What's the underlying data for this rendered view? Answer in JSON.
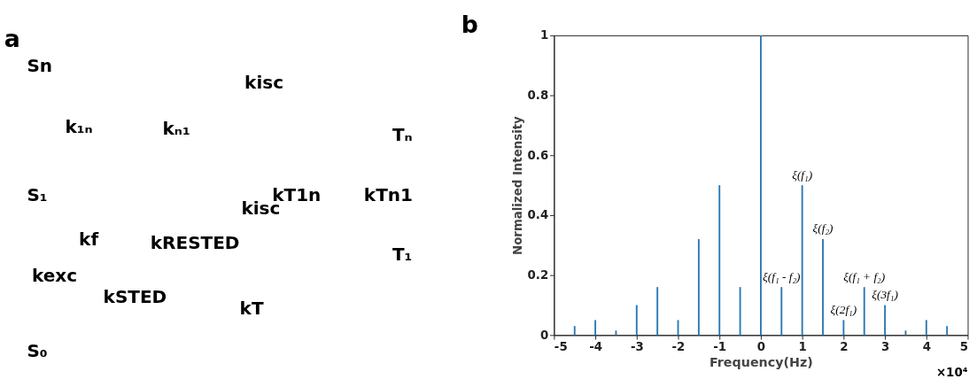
{
  "chart_data": [
    {
      "type": "other",
      "title": "a",
      "annotations": [
        "Sn",
        "k₁ₙ",
        "kₙ₁",
        "kisc",
        "Tₙ",
        "S₁",
        "kisc",
        "kT1n",
        "kTn1",
        "kf",
        "kRESTED",
        "T₁",
        "kexc",
        "kSTED",
        "kT",
        "S₀"
      ]
    },
    {
      "type": "bar",
      "title": "b",
      "xlabel": "Frequency(Hz)",
      "ylabel": "Normalized Intensity",
      "x": [
        -4.5,
        -4,
        -3.5,
        -3,
        -2.5,
        -2,
        -1.5,
        -1,
        -0.5,
        0,
        0.5,
        1,
        1.5,
        2,
        2.5,
        3,
        3.5,
        4,
        4.5
      ],
      "series": [
        {
          "color": "#2a7ab5",
          "values": [
            0.03,
            0.05,
            0.015,
            0.1,
            0.16,
            0.05,
            0.32,
            0.5,
            0.16,
            1,
            0.16,
            0.5,
            0.32,
            0.05,
            0.16,
            0.1,
            0.015,
            0.05,
            0.03
          ]
        }
      ],
      "xlim": [
        -5,
        5
      ],
      "xticks": [
        -5,
        -4,
        -3,
        -2,
        -1,
        0,
        1,
        2,
        3,
        4,
        5
      ],
      "ylim": [
        0,
        1
      ],
      "yticks": [
        0,
        0.2,
        0.4,
        0.6,
        0.8,
        1
      ],
      "grid": false,
      "annotations": [
        {
          "text": "ξ(f₁)",
          "x": 1,
          "y": 0.5
        },
        {
          "text": "ξ(f₂)",
          "x": 1.5,
          "y": 0.32
        },
        {
          "text": "ξ(f₁ - f₂)",
          "x": 0.5,
          "y": 0.16
        },
        {
          "text": "ξ(2f₁)",
          "x": 2,
          "y": 0.05
        },
        {
          "text": "ξ(f₁ + f₂)",
          "x": 2.5,
          "y": 0.16
        },
        {
          "text": "ξ(3f₁)",
          "x": 3,
          "y": 0.1
        },
        "×10⁴"
      ]
    }
  ]
}
